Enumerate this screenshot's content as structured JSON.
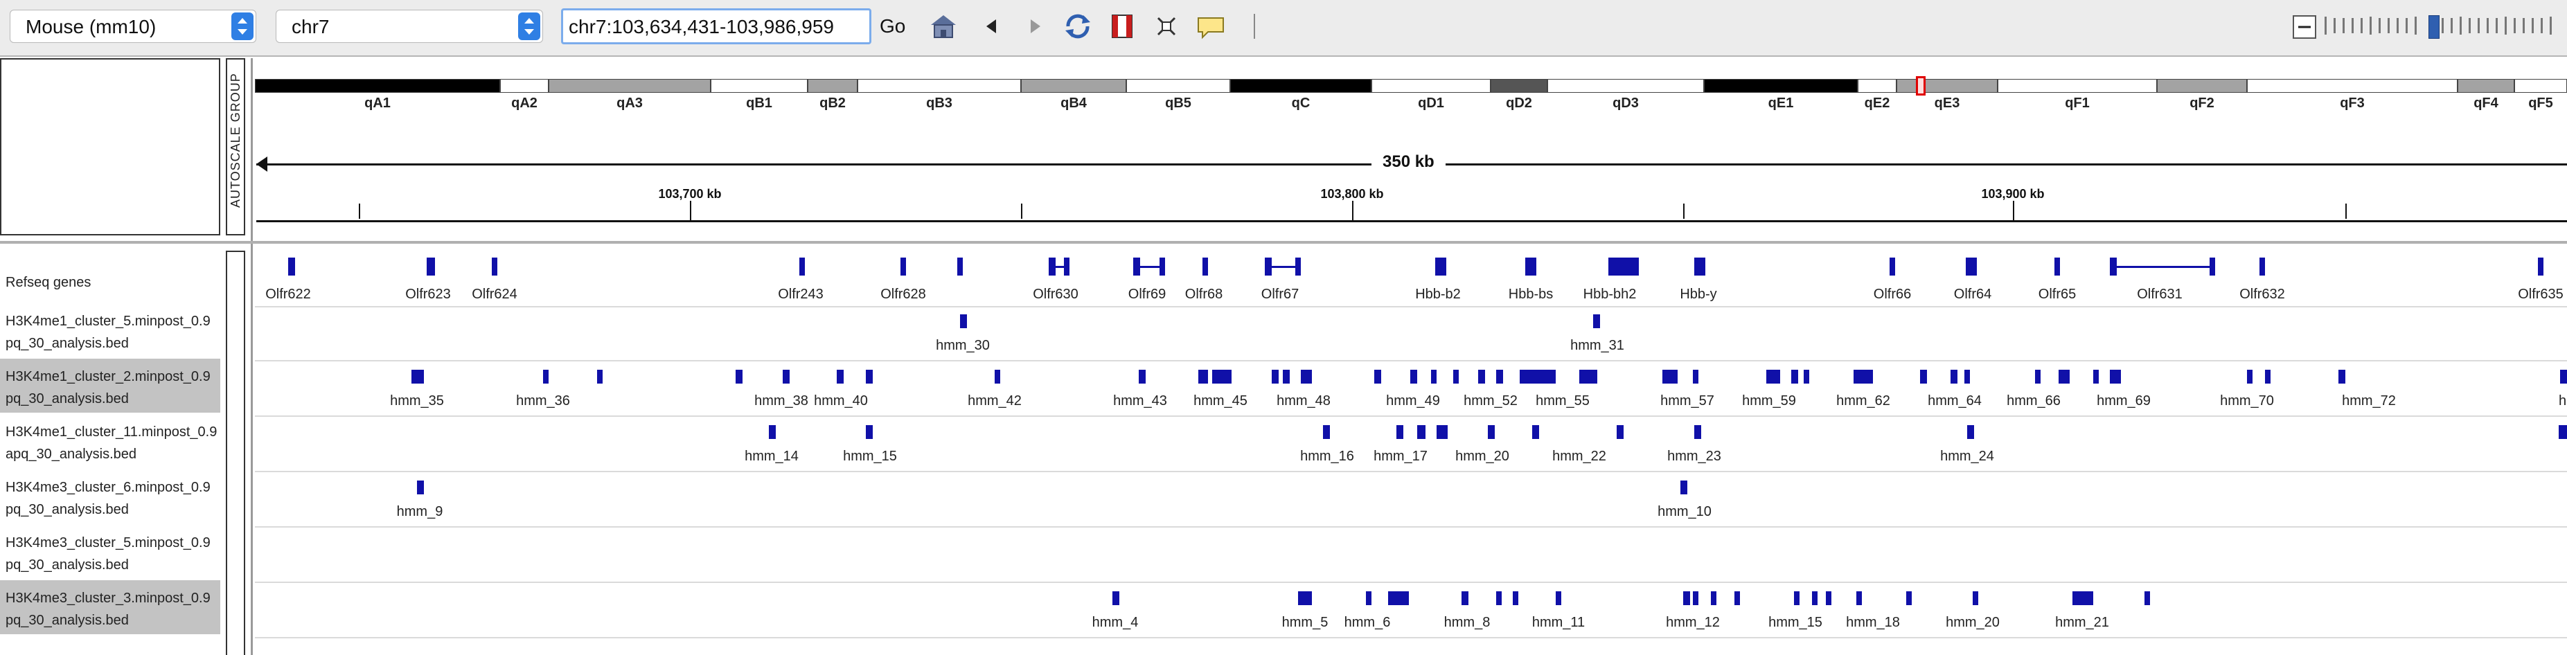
{
  "toolbar": {
    "genome": "Mouse (mm10)",
    "chromosome": "chr7",
    "locus": "chr7:103,634,431-103,986,959",
    "go_label": "Go",
    "icons": [
      "home-icon",
      "back-icon",
      "forward-icon",
      "refresh-icon",
      "region-icon",
      "fit-icon",
      "popup-icon"
    ]
  },
  "autoscale_label": "AUTOSCALE GROUP",
  "ideogram": {
    "bands": [
      {
        "name": "qA1",
        "color": "#000000"
      },
      {
        "name": "qA2",
        "color": "#ffffff"
      },
      {
        "name": "qA3",
        "color": "#a3a3a3"
      },
      {
        "name": "qB1",
        "color": "#ffffff"
      },
      {
        "name": "qB2",
        "color": "#a3a3a3"
      },
      {
        "name": "qB3",
        "color": "#ffffff"
      },
      {
        "name": "qB4",
        "color": "#a3a3a3"
      },
      {
        "name": "qB5",
        "color": "#ffffff"
      },
      {
        "name": "qC",
        "color": "#000000"
      },
      {
        "name": "qD1",
        "color": "#ffffff"
      },
      {
        "name": "qD2",
        "color": "#555555"
      },
      {
        "name": "qD3",
        "color": "#ffffff"
      },
      {
        "name": "qE1",
        "color": "#000000"
      },
      {
        "name": "qE2",
        "color": "#ffffff"
      },
      {
        "name": "qE3",
        "color": "#a3a3a3"
      },
      {
        "name": "qF1",
        "color": "#ffffff"
      },
      {
        "name": "qF2",
        "color": "#a3a3a3"
      },
      {
        "name": "qF3",
        "color": "#ffffff"
      },
      {
        "name": "qF4",
        "color": "#a3a3a3"
      },
      {
        "name": "qF5",
        "color": "#ffffff"
      }
    ]
  },
  "ruler": {
    "span_label": "350 kb",
    "ticks": [
      "103,700 kb",
      "103,800 kb",
      "103,900 kb"
    ]
  },
  "tracks": [
    {
      "name": "Refseq genes",
      "selected": false
    },
    {
      "name": "H3K4me1_cluster_5.minpost_0.9 pq_30_analysis.bed",
      "line1": "H3K4me1_cluster_5.minpost_0.9",
      "line2": "pq_30_analysis.bed",
      "selected": false
    },
    {
      "name": "H3K4me1_cluster_2.minpost_0.9 pq_30_analysis.bed",
      "line1": "H3K4me1_cluster_2.minpost_0.9",
      "line2": "pq_30_analysis.bed",
      "selected": true
    },
    {
      "name": "H3K4me1_cluster_11.minpost_0.9 apq_30_analysis.bed",
      "line1": "H3K4me1_cluster_11.minpost_0.9",
      "line2": "apq_30_analysis.bed",
      "selected": false
    },
    {
      "name": "H3K4me3_cluster_6.minpost_0.9 pq_30_analysis.bed",
      "line1": "H3K4me3_cluster_6.minpost_0.9",
      "line2": "pq_30_analysis.bed",
      "selected": false
    },
    {
      "name": "H3K4me3_cluster_5.minpost_0.9 pq_30_analysis.bed",
      "line1": "H3K4me3_cluster_5.minpost_0.9",
      "line2": "pq_30_analysis.bed",
      "selected": false
    },
    {
      "name": "H3K4me3_cluster_3.minpost_0.9 pq_30_analysis.bed",
      "line1": "H3K4me3_cluster_3.minpost_0.9",
      "line2": "pq_30_analysis.bed",
      "selected": true
    }
  ],
  "genes": [
    "Olfr622",
    "Olfr623",
    "Olfr624",
    "Olfr243",
    "Olfr628",
    "Olfr630",
    "Olfr69",
    "Olfr68",
    "Olfr67",
    "Hbb-b2",
    "Hbb-bs",
    "Hbb-bh2",
    "Hbb-y",
    "Olfr66",
    "Olfr64",
    "Olfr65",
    "Olfr631",
    "Olfr632",
    "Olfr635"
  ],
  "track_labels": {
    "t1": [
      "hmm_30",
      "hmm_31"
    ],
    "t2": [
      "hmm_35",
      "hmm_36",
      "hmm_38",
      "hmm_40",
      "hmm_42",
      "hmm_43",
      "hmm_45",
      "hmm_48",
      "hmm_49",
      "hmm_52",
      "hmm_55",
      "hmm_57",
      "hmm_59",
      "hmm_62",
      "hmm_64",
      "hmm_66",
      "hmm_69",
      "hmm_70",
      "hmm_72",
      "hm"
    ],
    "t3": [
      "hmm_14",
      "hmm_15",
      "hmm_16",
      "hmm_17",
      "hmm_20",
      "hmm_22",
      "hmm_23",
      "hmm_24"
    ],
    "t4": [
      "hmm_9",
      "hmm_10"
    ],
    "t6": [
      "hmm_4",
      "hmm_5",
      "hmm_6",
      "hmm_8",
      "hmm_11",
      "hmm_12",
      "hmm_15",
      "hmm_18",
      "hmm_20",
      "hmm_21"
    ]
  }
}
